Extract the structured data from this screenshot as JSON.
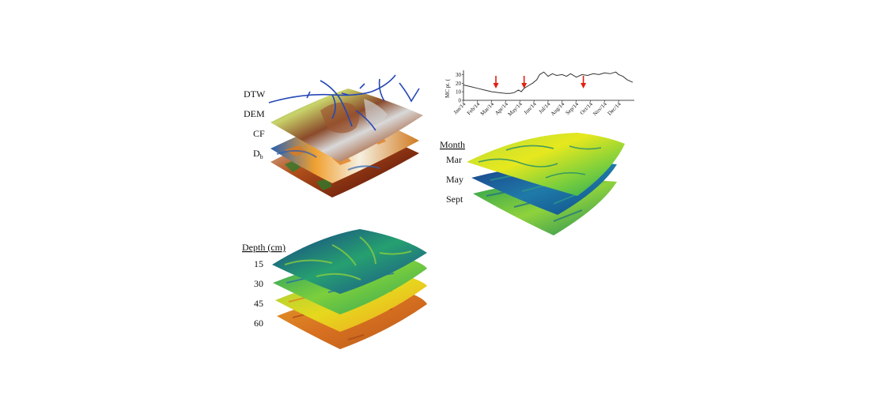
{
  "panel_a": {
    "layers": [
      "DTW",
      "DEM",
      "CF",
      "D",
      "b"
    ]
  },
  "panel_b": {
    "header": "Month",
    "layers": [
      "Mar",
      "May",
      "Sept"
    ]
  },
  "panel_c": {
    "header": "Depth (cm)",
    "layers": [
      "15",
      "30",
      "45",
      "60"
    ]
  },
  "chart_data": {
    "type": "line",
    "ylabel": "MC pt. (",
    "ylim": [
      0,
      35
    ],
    "yticks": [
      "0",
      "10",
      "20",
      "30"
    ],
    "categories": [
      "Jan/14",
      "Feb/14",
      "Mar/14",
      "Apr/14",
      "May/14",
      "Jun/14",
      "Jul/14",
      "Aug/14",
      "Sep/14",
      "Oct/14",
      "Nov/14",
      "Dec/14"
    ],
    "x": [
      0,
      0.5,
      1,
      1.5,
      2,
      2.5,
      3,
      3.3,
      3.6,
      3.9,
      4.1,
      4.3,
      4.6,
      4.9,
      5.2,
      5.4,
      5.7,
      6.0,
      6.3,
      6.6,
      7.0,
      7.3,
      7.6,
      8.0,
      8.4,
      8.8,
      9.2,
      9.6,
      10.0,
      10.4,
      10.8,
      11.0,
      11.3,
      11.6,
      12.0
    ],
    "values": [
      18,
      16,
      14,
      12,
      10,
      9,
      8,
      8,
      9,
      12,
      10,
      14,
      17,
      20,
      24,
      30,
      33,
      28,
      31,
      29,
      30,
      28,
      31,
      27,
      30,
      29,
      31,
      30,
      32,
      31,
      33,
      30,
      28,
      24,
      21
    ],
    "grid": false,
    "annotations": [
      {
        "type": "red-down-arrow",
        "x": 2.3
      },
      {
        "type": "red-down-arrow",
        "x": 4.3
      },
      {
        "type": "red-down-arrow",
        "x": 8.5
      }
    ],
    "colors": {
      "line": "#333333",
      "arrow": "#e02010"
    }
  }
}
